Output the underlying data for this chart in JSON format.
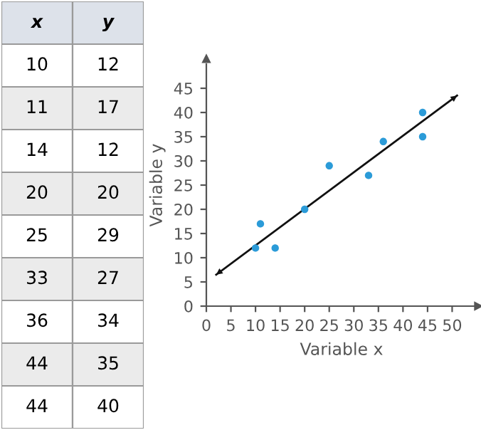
{
  "chart_data": {
    "type": "scatter",
    "xlabel": "Variable x",
    "ylabel": "Variable y",
    "series": [
      {
        "color": "#2b9bd8",
        "x": [
          10,
          11,
          14,
          20,
          25,
          33,
          36,
          44,
          44
        ],
        "values": [
          12,
          17,
          12,
          20,
          29,
          27,
          34,
          35,
          40
        ]
      },
      {
        "type": "line",
        "color": "#111111",
        "marker": "none",
        "x": [
          2,
          51
        ],
        "values": [
          6.5,
          43.5
        ]
      }
    ],
    "annotations": [
      "x",
      "y",
      "10",
      "12",
      "11",
      "17",
      "14",
      "12",
      "20",
      "20",
      "25",
      "29",
      "33",
      "27",
      "36",
      "34",
      "44",
      "35",
      "44",
      "40"
    ],
    "xlim": [
      0,
      55
    ],
    "ylim": [
      0,
      50
    ],
    "xticks": [
      0,
      5,
      10,
      15,
      20,
      25,
      30,
      35,
      40,
      45,
      50
    ],
    "yticks": [
      0,
      5,
      10,
      15,
      20,
      25,
      30,
      35,
      40,
      45
    ],
    "grid": false,
    "marker": "circle",
    "line_style": "solid"
  }
}
